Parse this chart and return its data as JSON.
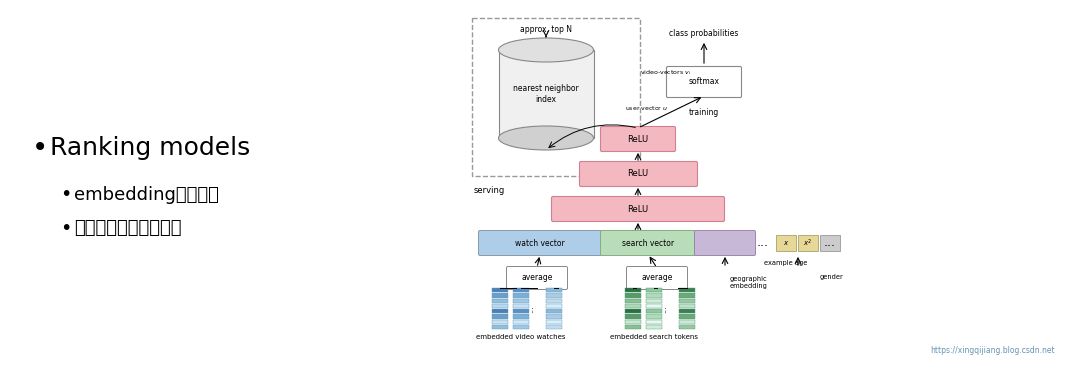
{
  "bg_color": "#ffffff",
  "text_main": "Ranking models",
  "text_sub1": "embedding规模很大",
  "text_sub2": "训练和上线都比较耗时",
  "watermark": "https://xingqijiang.blog.csdn.net",
  "relu_color": "#f4b8c1",
  "relu_border": "#d08090",
  "watch_color": "#aecde8",
  "search_color": "#b8ddb8",
  "purple_color": "#c8b8d8",
  "gray_color": "#cccccc",
  "yellow_color": "#e8d898",
  "softmax_color": "#ffffff",
  "dashed_color": "#999999",
  "cyl_face": "#f0f0f0",
  "cyl_top": "#e0e0e0",
  "cyl_bot": "#d0d0d0"
}
